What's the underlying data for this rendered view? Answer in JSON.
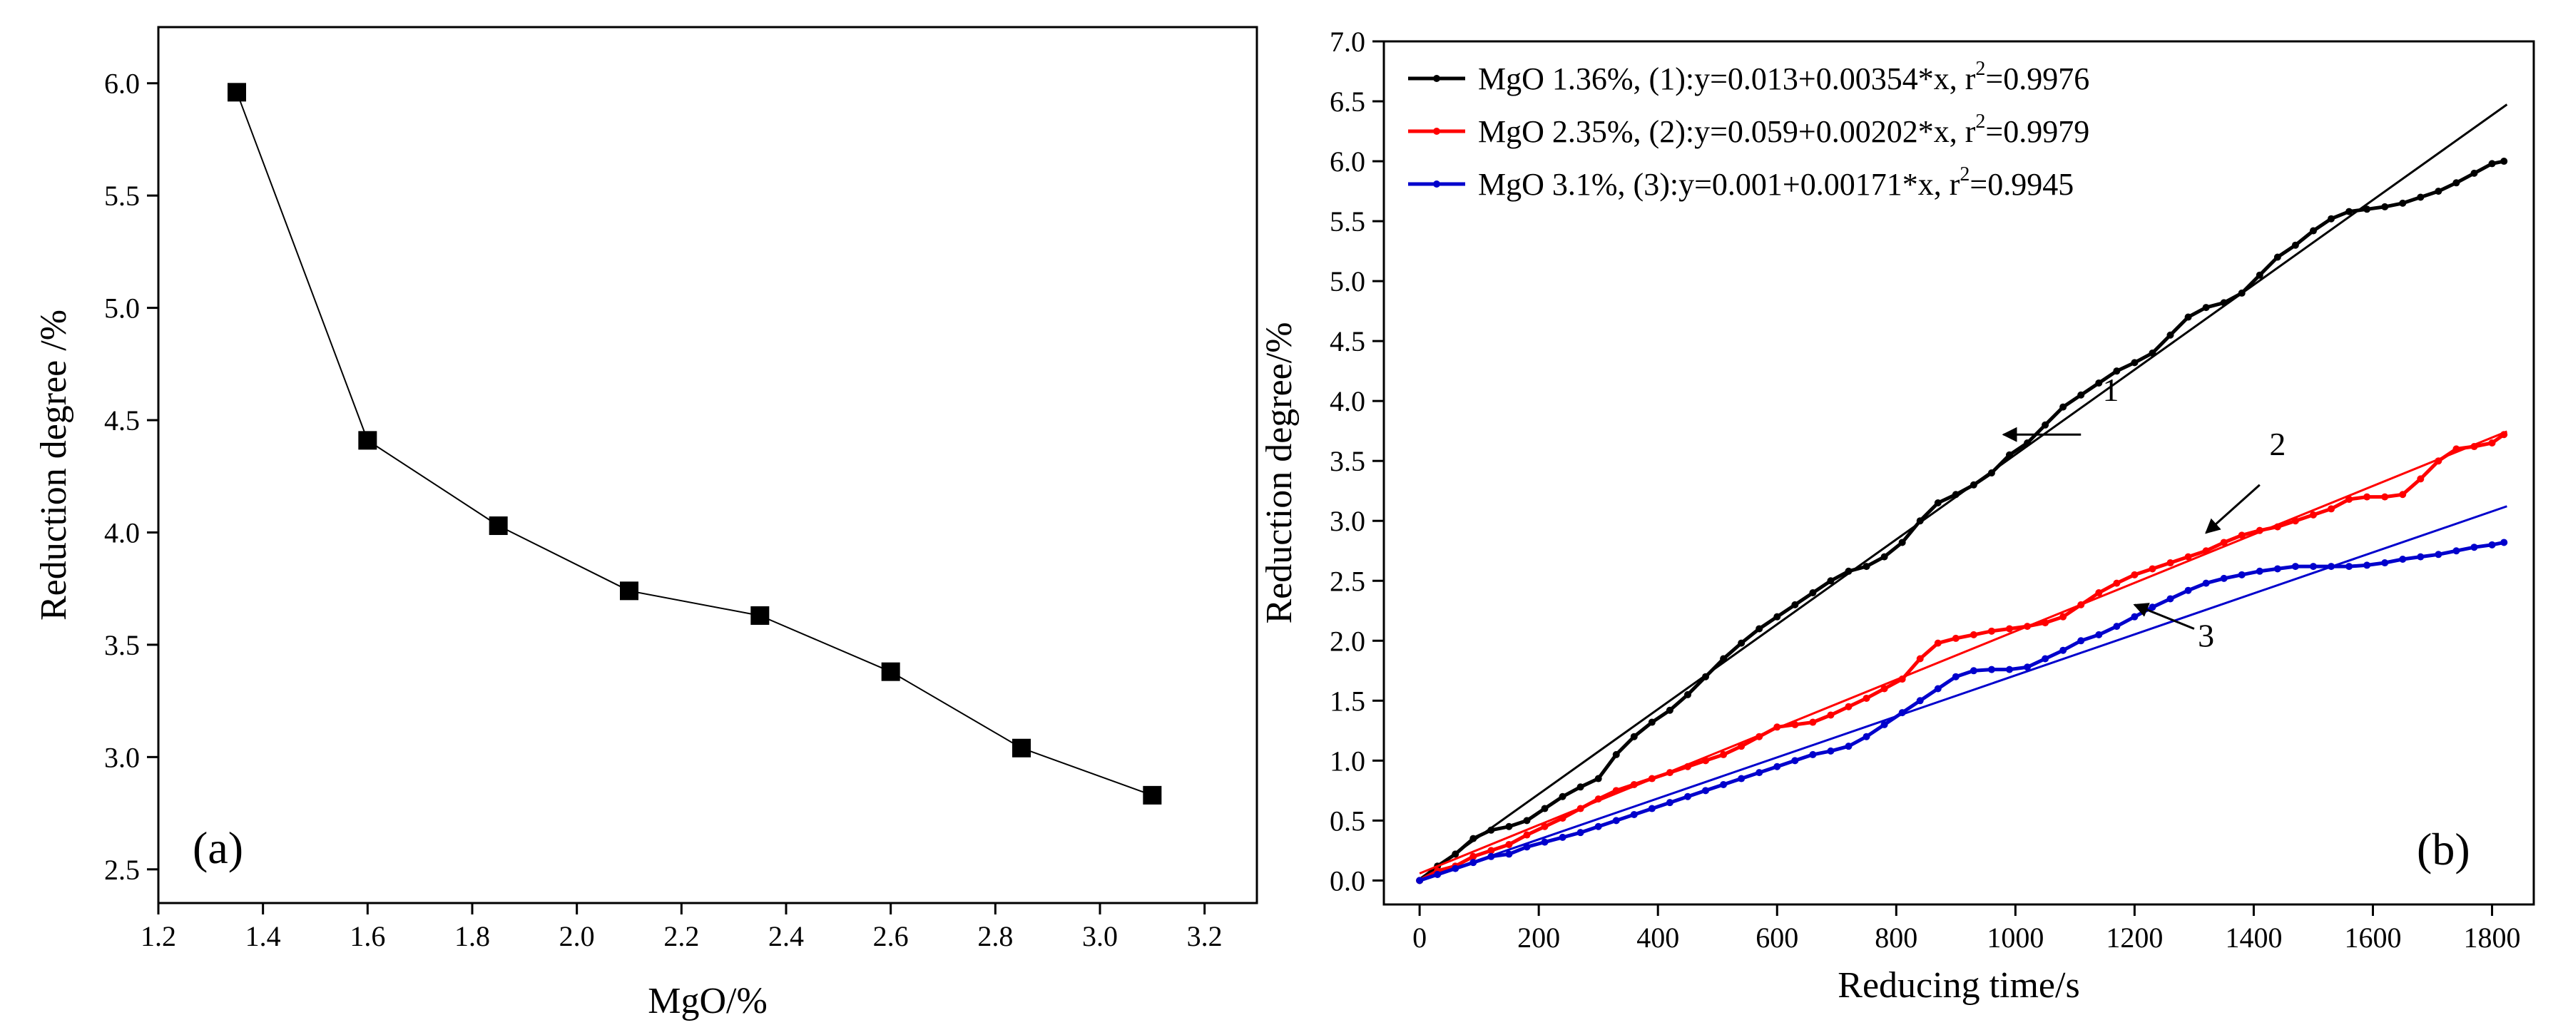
{
  "chart_data": [
    {
      "type": "scatter",
      "panel_label": "(a)",
      "xlabel": "MgO/%",
      "ylabel": "Reduction degree /%",
      "xlim": [
        1.2,
        3.3
      ],
      "ylim": [
        2.35,
        6.25
      ],
      "xticks": [
        1.2,
        1.4,
        1.6,
        1.8,
        2.0,
        2.2,
        2.4,
        2.6,
        2.8,
        3.0,
        3.2
      ],
      "yticks": [
        2.5,
        3.0,
        3.5,
        4.0,
        4.5,
        5.0,
        5.5,
        6.0
      ],
      "xtick_labels": [
        "1.2",
        "1.4",
        "1.6",
        "1.8",
        "2.0",
        "2.2",
        "2.4",
        "2.6",
        "2.8",
        "3.0",
        "3.2"
      ],
      "ytick_labels": [
        "2.5",
        "3.0",
        "3.5",
        "4.0",
        "4.5",
        "5.0",
        "5.5",
        "6.0"
      ],
      "grid": false,
      "series": [
        {
          "x": [
            1.35,
            1.6,
            1.85,
            2.1,
            2.35,
            2.6,
            2.85,
            3.1
          ],
          "y": [
            5.96,
            4.41,
            4.03,
            3.74,
            3.63,
            3.38,
            3.04,
            2.83
          ],
          "color": "#000000",
          "marker": "square",
          "connected": true
        }
      ]
    },
    {
      "type": "line",
      "panel_label": "(b)",
      "xlabel": "Reducing time/s",
      "ylabel": "Reduction degree/%",
      "xlim": [
        -60,
        1870
      ],
      "ylim": [
        -0.2,
        7.0
      ],
      "xticks": [
        0,
        200,
        400,
        600,
        800,
        1000,
        1200,
        1400,
        1600,
        1800
      ],
      "yticks": [
        0.0,
        0.5,
        1.0,
        1.5,
        2.0,
        2.5,
        3.0,
        3.5,
        4.0,
        4.5,
        5.0,
        5.5,
        6.0,
        6.5,
        7.0
      ],
      "xtick_labels": [
        "0",
        "200",
        "400",
        "600",
        "800",
        "1000",
        "1200",
        "1400",
        "1600",
        "1800"
      ],
      "ytick_labels": [
        "0.0",
        "0.5",
        "1.0",
        "1.5",
        "2.0",
        "2.5",
        "3.0",
        "3.5",
        "4.0",
        "4.5",
        "5.0",
        "5.5",
        "6.0",
        "6.5",
        "7.0"
      ],
      "grid": false,
      "legend_position": "top-left",
      "series": [
        {
          "legend_pre": "MgO 1.36%, (1):y=0.013+0.00354*x, r",
          "legend_sup": "2",
          "legend_post": "=0.9976",
          "color": "#000000",
          "fit": {
            "intercept": 0.013,
            "slope": 0.00354
          },
          "x": [
            0,
            30,
            60,
            90,
            120,
            150,
            180,
            210,
            240,
            270,
            300,
            330,
            360,
            390,
            420,
            450,
            480,
            510,
            540,
            570,
            600,
            630,
            660,
            690,
            720,
            750,
            780,
            810,
            840,
            870,
            900,
            930,
            960,
            990,
            1020,
            1050,
            1080,
            1110,
            1140,
            1170,
            1200,
            1230,
            1260,
            1290,
            1320,
            1350,
            1380,
            1410,
            1440,
            1470,
            1500,
            1530,
            1560,
            1590,
            1620,
            1650,
            1680,
            1710,
            1740,
            1770,
            1800,
            1820
          ],
          "y": [
            0.0,
            0.12,
            0.22,
            0.35,
            0.42,
            0.45,
            0.5,
            0.6,
            0.7,
            0.78,
            0.85,
            1.05,
            1.2,
            1.32,
            1.42,
            1.55,
            1.7,
            1.85,
            1.98,
            2.1,
            2.2,
            2.3,
            2.4,
            2.5,
            2.58,
            2.62,
            2.7,
            2.82,
            3.0,
            3.15,
            3.22,
            3.3,
            3.4,
            3.55,
            3.65,
            3.8,
            3.95,
            4.05,
            4.15,
            4.25,
            4.32,
            4.4,
            4.55,
            4.7,
            4.78,
            4.82,
            4.9,
            5.05,
            5.2,
            5.3,
            5.42,
            5.52,
            5.58,
            5.6,
            5.62,
            5.65,
            5.7,
            5.75,
            5.82,
            5.9,
            5.98,
            6.0
          ]
        },
        {
          "legend_pre": "MgO 2.35%, (2):y=0.059+0.00202*x, r",
          "legend_sup": "2",
          "legend_post": "=0.9979",
          "color": "#ff0000",
          "fit": {
            "intercept": 0.059,
            "slope": 0.00202
          },
          "x": [
            0,
            30,
            60,
            90,
            120,
            150,
            180,
            210,
            240,
            270,
            300,
            330,
            360,
            390,
            420,
            450,
            480,
            510,
            540,
            570,
            600,
            630,
            660,
            690,
            720,
            750,
            780,
            810,
            840,
            870,
            900,
            930,
            960,
            990,
            1020,
            1050,
            1080,
            1110,
            1140,
            1170,
            1200,
            1230,
            1260,
            1290,
            1320,
            1350,
            1380,
            1410,
            1440,
            1470,
            1500,
            1530,
            1560,
            1590,
            1620,
            1650,
            1680,
            1710,
            1740,
            1770,
            1800,
            1820
          ],
          "y": [
            0.0,
            0.08,
            0.12,
            0.2,
            0.25,
            0.3,
            0.38,
            0.45,
            0.52,
            0.6,
            0.68,
            0.75,
            0.8,
            0.85,
            0.9,
            0.95,
            1.0,
            1.05,
            1.12,
            1.2,
            1.28,
            1.3,
            1.32,
            1.38,
            1.45,
            1.52,
            1.6,
            1.68,
            1.85,
            1.98,
            2.02,
            2.05,
            2.08,
            2.1,
            2.12,
            2.15,
            2.2,
            2.3,
            2.4,
            2.48,
            2.55,
            2.6,
            2.65,
            2.7,
            2.75,
            2.82,
            2.88,
            2.92,
            2.95,
            3.0,
            3.05,
            3.1,
            3.18,
            3.2,
            3.2,
            3.22,
            3.35,
            3.5,
            3.6,
            3.62,
            3.65,
            3.72
          ]
        },
        {
          "legend_pre": "MgO 3.1%, (3):y=0.001+0.00171*x, r",
          "legend_sup": "2",
          "legend_post": "=0.9945",
          "color": "#0000cc",
          "fit": {
            "intercept": 0.001,
            "slope": 0.00171
          },
          "x": [
            0,
            30,
            60,
            90,
            120,
            150,
            180,
            210,
            240,
            270,
            300,
            330,
            360,
            390,
            420,
            450,
            480,
            510,
            540,
            570,
            600,
            630,
            660,
            690,
            720,
            750,
            780,
            810,
            840,
            870,
            900,
            930,
            960,
            990,
            1020,
            1050,
            1080,
            1110,
            1140,
            1170,
            1200,
            1230,
            1260,
            1290,
            1320,
            1350,
            1380,
            1410,
            1440,
            1470,
            1500,
            1530,
            1560,
            1590,
            1620,
            1650,
            1680,
            1710,
            1740,
            1770,
            1800,
            1820
          ],
          "y": [
            0.0,
            0.05,
            0.1,
            0.15,
            0.2,
            0.22,
            0.28,
            0.32,
            0.36,
            0.4,
            0.45,
            0.5,
            0.55,
            0.6,
            0.65,
            0.7,
            0.75,
            0.8,
            0.85,
            0.9,
            0.95,
            1.0,
            1.05,
            1.08,
            1.12,
            1.2,
            1.3,
            1.4,
            1.5,
            1.6,
            1.7,
            1.75,
            1.76,
            1.76,
            1.78,
            1.85,
            1.92,
            2.0,
            2.05,
            2.12,
            2.2,
            2.28,
            2.35,
            2.42,
            2.48,
            2.52,
            2.55,
            2.58,
            2.6,
            2.62,
            2.62,
            2.62,
            2.62,
            2.63,
            2.65,
            2.68,
            2.7,
            2.72,
            2.75,
            2.78,
            2.8,
            2.82
          ]
        }
      ],
      "annotations": [
        {
          "text": "1",
          "x": 1160,
          "y": 4.0,
          "arrow_from": [
            1110,
            3.72
          ],
          "arrow_to": [
            980,
            3.72
          ]
        },
        {
          "text": "2",
          "x": 1440,
          "y": 3.55,
          "arrow_from": [
            1410,
            3.3
          ],
          "arrow_to": [
            1320,
            2.9
          ]
        },
        {
          "text": "3",
          "x": 1320,
          "y": 1.95,
          "arrow_from": [
            1300,
            2.1
          ],
          "arrow_to": [
            1200,
            2.3
          ]
        }
      ]
    }
  ]
}
